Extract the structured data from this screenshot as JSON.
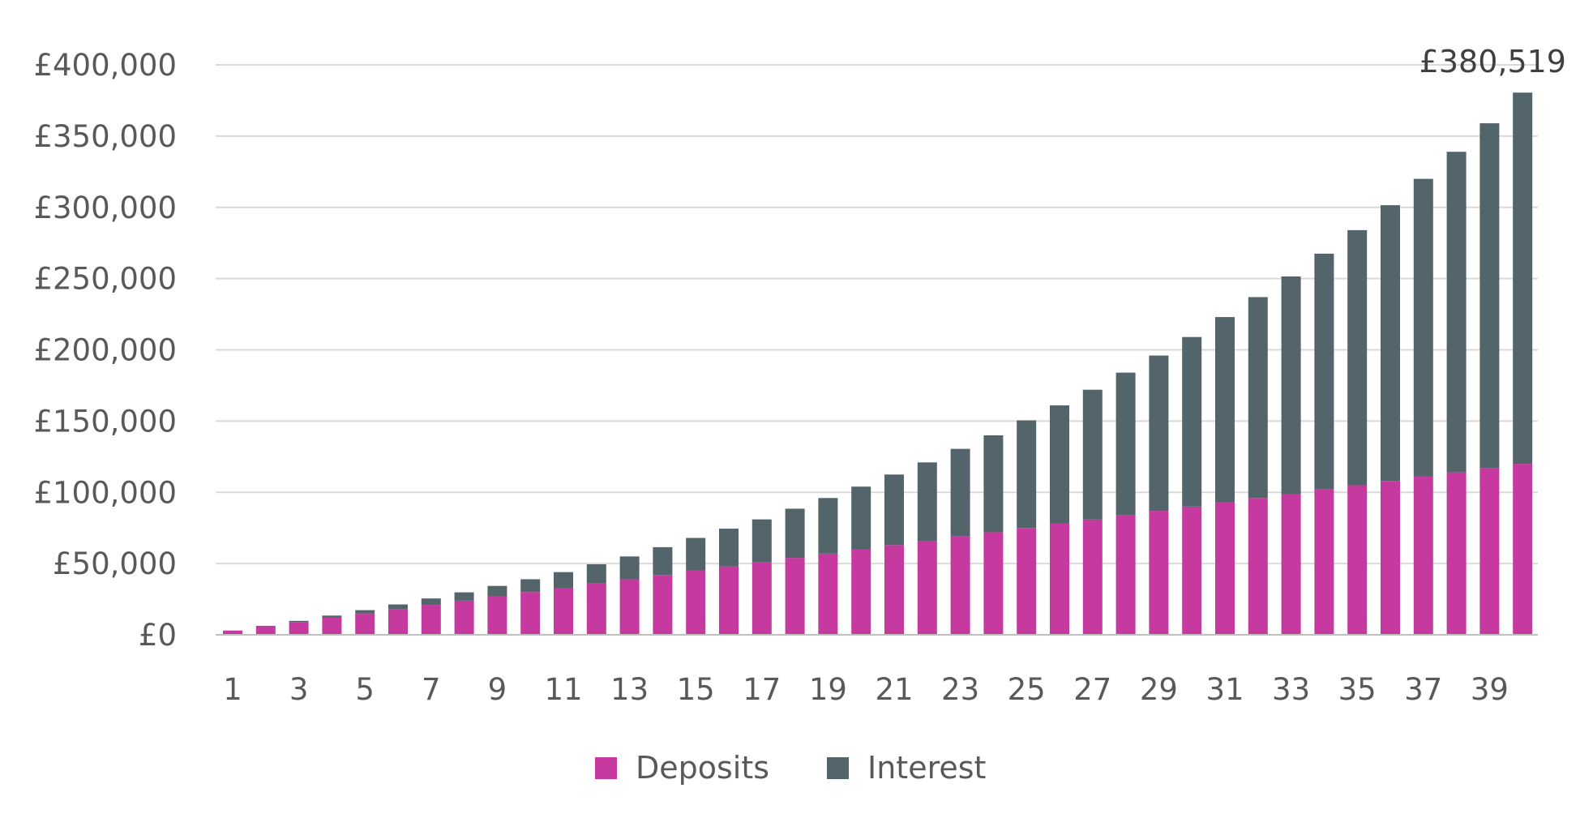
{
  "chart_data": {
    "type": "bar",
    "stacked": true,
    "title": "",
    "xlabel": "",
    "ylabel": "",
    "categories": [
      1,
      2,
      3,
      4,
      5,
      6,
      7,
      8,
      9,
      10,
      11,
      12,
      13,
      14,
      15,
      16,
      17,
      18,
      19,
      20,
      21,
      22,
      23,
      24,
      25,
      26,
      27,
      28,
      29,
      30,
      31,
      32,
      33,
      34,
      35,
      36,
      37,
      38,
      39,
      40
    ],
    "x_tick_labels": [
      "1",
      "3",
      "5",
      "7",
      "9",
      "11",
      "13",
      "15",
      "17",
      "19",
      "21",
      "23",
      "25",
      "27",
      "29",
      "31",
      "33",
      "35",
      "37",
      "39"
    ],
    "y_tick_values": [
      0,
      50000,
      100000,
      150000,
      200000,
      250000,
      300000,
      350000,
      400000
    ],
    "y_tick_labels": [
      "£0",
      "£50,000",
      "£100,000",
      "£150,000",
      "£200,000",
      "£250,000",
      "£300,000",
      "£350,000",
      "£400,000"
    ],
    "ylim": [
      0,
      400000
    ],
    "grid": true,
    "legend_position": "bottom",
    "series": [
      {
        "name": "Deposits",
        "color": "#c6399f",
        "values": [
          3000,
          6000,
          9000,
          12000,
          15000,
          18000,
          21000,
          24000,
          27000,
          30000,
          33000,
          36000,
          39000,
          42000,
          45000,
          48000,
          51000,
          54000,
          57000,
          60000,
          63000,
          66000,
          69000,
          72000,
          75000,
          78000,
          81000,
          84000,
          87000,
          90000,
          93000,
          96000,
          99000,
          102000,
          105000,
          108000,
          111000,
          114000,
          117000,
          120000
        ]
      },
      {
        "name": "Interest",
        "color": "#53646a",
        "values": [
          0,
          300,
          800,
          1500,
          2300,
          3300,
          4500,
          5800,
          7300,
          9000,
          11000,
          13500,
          16000,
          19500,
          23000,
          26500,
          30000,
          34500,
          39000,
          44000,
          49500,
          55000,
          61500,
          68000,
          75500,
          83000,
          91000,
          100000,
          109000,
          119000,
          130000,
          141000,
          152500,
          165500,
          179000,
          193500,
          209000,
          225000,
          242000,
          260519
        ]
      }
    ],
    "annotations": [
      {
        "category": 40,
        "text": "£380,519"
      }
    ]
  }
}
